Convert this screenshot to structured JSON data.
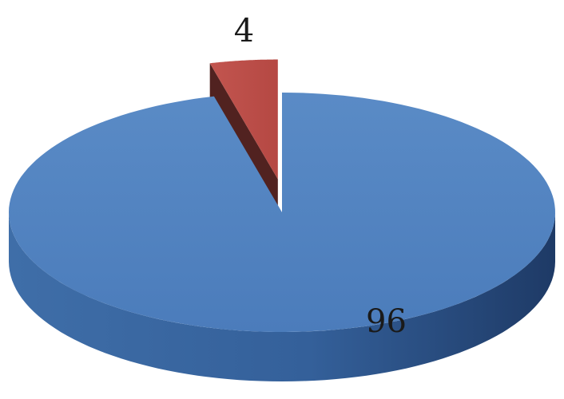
{
  "chart_data": {
    "type": "pie",
    "style": "3d-exploded",
    "categories": [
      "",
      ""
    ],
    "values": [
      96,
      4
    ],
    "data_labels": [
      "96",
      "4"
    ],
    "colors": [
      "#4f81bd",
      "#c0504d"
    ],
    "title": "",
    "legend": "none"
  }
}
